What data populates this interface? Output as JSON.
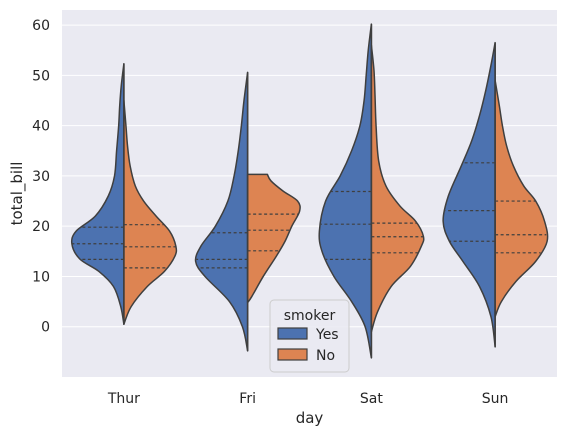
{
  "chart_data": {
    "type": "violin",
    "subtype": "split",
    "xlabel": "day",
    "ylabel": "total_bill",
    "categories": [
      "Thur",
      "Fri",
      "Sat",
      "Sun"
    ],
    "ylim": [
      -10,
      63
    ],
    "yticks": [
      0,
      10,
      20,
      30,
      40,
      50,
      60
    ],
    "grid": true,
    "inner": "quartile",
    "legend": {
      "title": "smoker",
      "placement": "lower-center"
    },
    "colors": {
      "background": "#eaeaf2",
      "grid": "#ffffff",
      "outline": "#3f3f3f"
    },
    "series": [
      {
        "name": "Yes",
        "color": "#4c72b0",
        "side": "left",
        "violins": [
          {
            "category": "Thur",
            "range": [
              0.5,
              52.3
            ],
            "quartiles": [
              13.4,
              16.5,
              19.8
            ],
            "profile": [
              [
                0.5,
                0.0
              ],
              [
                4,
                0.06
              ],
              [
                8,
                0.2
              ],
              [
                11,
                0.48
              ],
              [
                13.5,
                0.85
              ],
              [
                16.5,
                1.0
              ],
              [
                19,
                0.92
              ],
              [
                22,
                0.55
              ],
              [
                26,
                0.3
              ],
              [
                30,
                0.18
              ],
              [
                35,
                0.14
              ],
              [
                40,
                0.1
              ],
              [
                44,
                0.08
              ],
              [
                48,
                0.05
              ],
              [
                52.3,
                0.0
              ]
            ]
          },
          {
            "category": "Fri",
            "range": [
              -4.8,
              50.6
            ],
            "quartiles": [
              11.7,
              13.4,
              18.7
            ],
            "profile": [
              [
                -4.8,
                0.0
              ],
              [
                0,
                0.1
              ],
              [
                5,
                0.35
              ],
              [
                10,
                0.82
              ],
              [
                13,
                1.0
              ],
              [
                16,
                0.9
              ],
              [
                20,
                0.62
              ],
              [
                25,
                0.38
              ],
              [
                30,
                0.26
              ],
              [
                35,
                0.18
              ],
              [
                40,
                0.12
              ],
              [
                45,
                0.07
              ],
              [
                50.6,
                0.0
              ]
            ]
          },
          {
            "category": "Sat",
            "range": [
              -6.2,
              60.2
            ],
            "quartiles": [
              13.4,
              20.4,
              26.9
            ],
            "profile": [
              [
                -6.2,
                0.0
              ],
              [
                0,
                0.12
              ],
              [
                5,
                0.38
              ],
              [
                10,
                0.72
              ],
              [
                15,
                0.95
              ],
              [
                19,
                1.0
              ],
              [
                25,
                0.88
              ],
              [
                30,
                0.6
              ],
              [
                35,
                0.38
              ],
              [
                40,
                0.22
              ],
              [
                45,
                0.14
              ],
              [
                50,
                0.1
              ],
              [
                55,
                0.06
              ],
              [
                60.2,
                0.0
              ]
            ]
          },
          {
            "category": "Sun",
            "range": [
              -4.0,
              56.5
            ],
            "quartiles": [
              17.0,
              23.1,
              32.6
            ],
            "profile": [
              [
                -4.0,
                0.0
              ],
              [
                2,
                0.08
              ],
              [
                8,
                0.3
              ],
              [
                13,
                0.62
              ],
              [
                17,
                0.88
              ],
              [
                21,
                1.0
              ],
              [
                26,
                0.9
              ],
              [
                32,
                0.65
              ],
              [
                37,
                0.45
              ],
              [
                42,
                0.3
              ],
              [
                47,
                0.18
              ],
              [
                52,
                0.08
              ],
              [
                56.5,
                0.0
              ]
            ]
          }
        ]
      },
      {
        "name": "No",
        "color": "#dd8452",
        "side": "right",
        "violins": [
          {
            "category": "Thur",
            "range": [
              0.5,
              45.0
            ],
            "quartiles": [
              11.7,
              15.9,
              20.3
            ],
            "profile": [
              [
                0.5,
                0.0
              ],
              [
                4,
                0.14
              ],
              [
                8,
                0.45
              ],
              [
                11,
                0.78
              ],
              [
                14,
                0.98
              ],
              [
                16,
                1.0
              ],
              [
                19,
                0.88
              ],
              [
                22,
                0.62
              ],
              [
                25,
                0.38
              ],
              [
                28,
                0.22
              ],
              [
                32,
                0.12
              ],
              [
                36,
                0.07
              ],
              [
                40,
                0.04
              ],
              [
                45,
                0.0
              ]
            ]
          },
          {
            "category": "Fri",
            "range": [
              4.8,
              30.3
            ],
            "quartiles": [
              15.1,
              19.2,
              22.4
            ],
            "profile": [
              [
                4.8,
                0.0
              ],
              [
                6,
                0.08
              ],
              [
                10,
                0.3
              ],
              [
                14,
                0.55
              ],
              [
                17,
                0.72
              ],
              [
                20,
                0.85
              ],
              [
                23,
                1.0
              ],
              [
                25,
                0.96
              ],
              [
                27,
                0.68
              ],
              [
                29,
                0.45
              ],
              [
                30.3,
                0.38
              ]
            ]
          },
          {
            "category": "Sat",
            "range": [
              -1.0,
              56.0
            ],
            "quartiles": [
              14.7,
              17.9,
              20.6
            ],
            "profile": [
              [
                -1.0,
                0.0
              ],
              [
                3,
                0.12
              ],
              [
                8,
                0.38
              ],
              [
                12,
                0.75
              ],
              [
                16,
                0.96
              ],
              [
                18,
                1.0
              ],
              [
                21,
                0.85
              ],
              [
                24,
                0.55
              ],
              [
                28,
                0.28
              ],
              [
                33,
                0.14
              ],
              [
                40,
                0.09
              ],
              [
                46,
                0.07
              ],
              [
                51,
                0.05
              ],
              [
                56,
                0.0
              ]
            ]
          },
          {
            "category": "Sun",
            "range": [
              2.0,
              49.0
            ],
            "quartiles": [
              14.7,
              18.3,
              25.0
            ],
            "profile": [
              [
                2.0,
                0.0
              ],
              [
                5,
                0.12
              ],
              [
                9,
                0.4
              ],
              [
                13,
                0.78
              ],
              [
                17,
                1.0
              ],
              [
                21,
                0.95
              ],
              [
                25,
                0.78
              ],
              [
                28,
                0.55
              ],
              [
                32,
                0.35
              ],
              [
                36,
                0.22
              ],
              [
                40,
                0.14
              ],
              [
                44,
                0.08
              ],
              [
                49,
                0.0
              ]
            ]
          }
        ]
      }
    ]
  }
}
